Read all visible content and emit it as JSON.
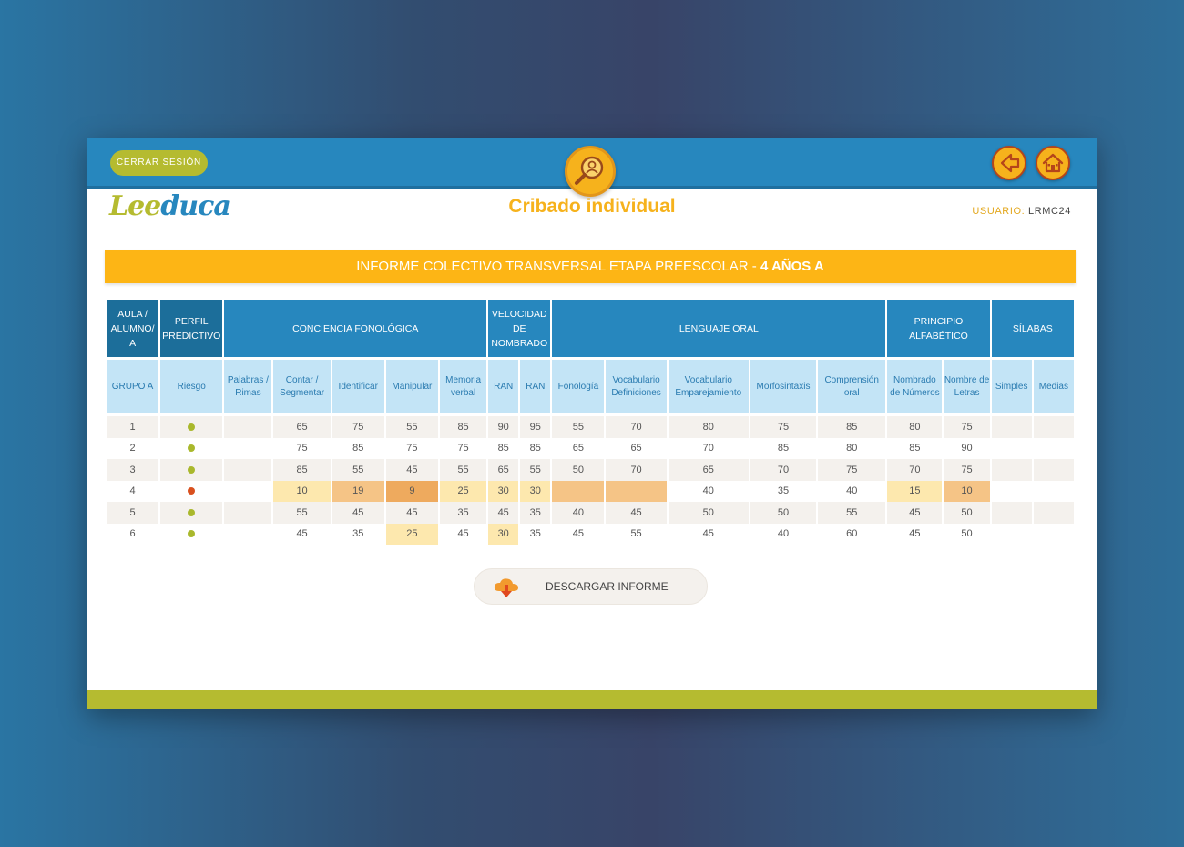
{
  "header": {
    "logout_label": "CERRAR SESIÓN",
    "center_icon": "search-person-icon",
    "back_icon": "arrow-left-icon",
    "home_icon": "house-icon"
  },
  "brand": {
    "logo_part1": "Lee",
    "logo_part2": "duca"
  },
  "page": {
    "title": "Cribado individual",
    "user_label": "USUARIO:",
    "user_value": "LRMC24"
  },
  "banner": {
    "text": "INFORME COLECTIVO TRANSVERSAL ETAPA PREESCOLAR - ",
    "highlight": "4 AÑOS A"
  },
  "table": {
    "groups": [
      {
        "label": "AULA / ALUMNO/ A",
        "span": 1,
        "dark": true
      },
      {
        "label": "PERFIL PREDICTIVO",
        "span": 1,
        "dark": true
      },
      {
        "label": "CONCIENCIA FONOLÓGICA",
        "span": 5,
        "dark": false
      },
      {
        "label": "VELOCIDAD DE NOMBRADO",
        "span": 2,
        "dark": false
      },
      {
        "label": "LENGUAJE ORAL",
        "span": 5,
        "dark": false
      },
      {
        "label": "PRINCIPIO ALFABÉTICO",
        "span": 2,
        "dark": false
      },
      {
        "label": "SÍLABAS",
        "span": 2,
        "dark": false
      }
    ],
    "subheaders": [
      "GRUPO A",
      "Riesgo",
      "Palabras / Rimas",
      "Contar / Segmentar",
      "Identificar",
      "Manipular",
      "Memoria verbal",
      "RAN",
      "RAN",
      "Fonología",
      "Vocabulario Definiciones",
      "Vocabulario Emparejamiento",
      "Morfosintaxis",
      "Comprensión oral",
      "Nombrado de Números",
      "Nombre de Letras",
      "Simples",
      "Medias"
    ],
    "rows": [
      {
        "id": "1",
        "risk_color": "#a9b82c",
        "values": [
          "",
          "65",
          "75",
          "55",
          "85",
          "90",
          "95",
          "55",
          "70",
          "80",
          "75",
          "85",
          "80",
          "75",
          "",
          ""
        ],
        "highlights": [
          "",
          "",
          "",
          "",
          "",
          "",
          "",
          "",
          "",
          "",
          "",
          "",
          "",
          "",
          "",
          ""
        ]
      },
      {
        "id": "2",
        "risk_color": "#a9b82c",
        "values": [
          "",
          "75",
          "85",
          "75",
          "75",
          "85",
          "85",
          "65",
          "65",
          "70",
          "85",
          "80",
          "85",
          "90",
          "",
          ""
        ],
        "highlights": [
          "",
          "",
          "",
          "",
          "",
          "",
          "",
          "",
          "",
          "",
          "",
          "",
          "",
          "",
          "",
          ""
        ]
      },
      {
        "id": "3",
        "risk_color": "#a9b82c",
        "values": [
          "",
          "85",
          "55",
          "45",
          "55",
          "65",
          "55",
          "50",
          "70",
          "65",
          "70",
          "75",
          "70",
          "75",
          "",
          ""
        ],
        "highlights": [
          "",
          "",
          "",
          "",
          "",
          "",
          "",
          "",
          "",
          "",
          "",
          "",
          "",
          "",
          "",
          ""
        ]
      },
      {
        "id": "4",
        "risk_color": "#d9501e",
        "values": [
          "",
          "10",
          "19",
          "9",
          "25",
          "30",
          "30",
          "",
          "",
          "40",
          "35",
          "40",
          "15",
          "10",
          "",
          ""
        ],
        "highlights": [
          "",
          "light",
          "mid",
          "dark",
          "light",
          "light",
          "light",
          "mid",
          "mid",
          "",
          "",
          "",
          "light",
          "mid",
          "",
          ""
        ]
      },
      {
        "id": "5",
        "risk_color": "#a9b82c",
        "values": [
          "",
          "55",
          "45",
          "45",
          "35",
          "45",
          "35",
          "40",
          "45",
          "50",
          "50",
          "55",
          "45",
          "50",
          "",
          ""
        ],
        "highlights": [
          "",
          "",
          "",
          "",
          "",
          "",
          "",
          "",
          "",
          "",
          "",
          "",
          "",
          "",
          "",
          ""
        ]
      },
      {
        "id": "6",
        "risk_color": "#a9b82c",
        "values": [
          "",
          "45",
          "35",
          "25",
          "45",
          "30",
          "35",
          "45",
          "55",
          "45",
          "40",
          "60",
          "45",
          "50",
          "",
          ""
        ],
        "highlights": [
          "",
          "",
          "",
          "light",
          "",
          "light",
          "",
          "",
          "",
          "",
          "",
          "",
          "",
          "",
          "",
          ""
        ]
      }
    ]
  },
  "download": {
    "label": "DESCARGAR INFORME",
    "icon": "cloud-download-icon"
  },
  "colors": {
    "primary_blue": "#2787be",
    "accent_yellow": "#fdb515",
    "accent_green": "#b5bb30",
    "risk_low": "#a9b82c",
    "risk_high": "#d9501e"
  }
}
